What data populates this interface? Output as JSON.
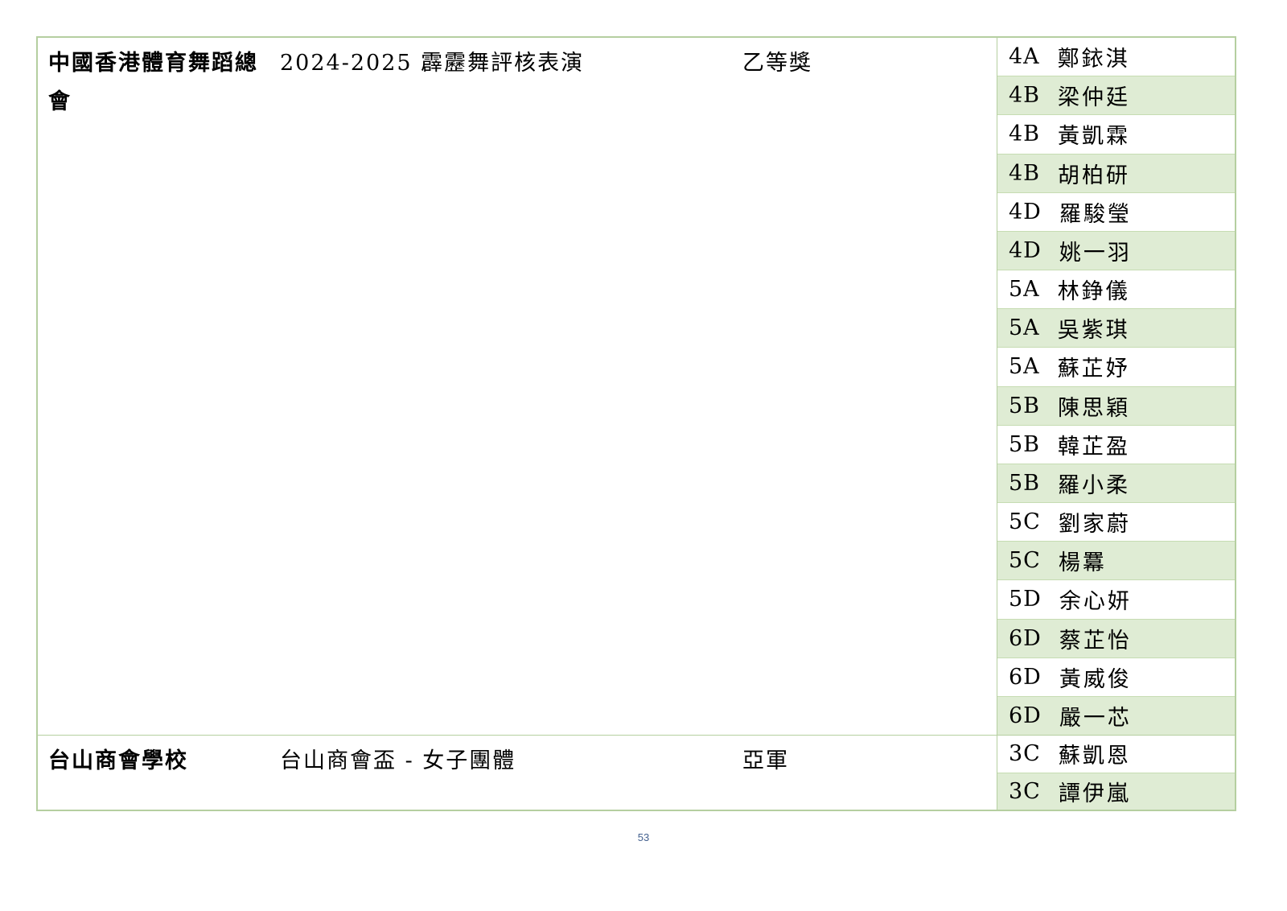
{
  "page": {
    "number": "53"
  },
  "colors": {
    "row_shade_green": "#dfecd4",
    "table_border_green": "#b5cfa0",
    "row_separator_green": "#c6dcb2",
    "page_number_blue": "#44618f"
  },
  "sections": [
    {
      "organization": "中國香港體育舞蹈總會",
      "event": "2024-2025 霹靂舞評核表演",
      "award": "乙等獎",
      "students": [
        {
          "class": "4A",
          "name": "鄭銥淇"
        },
        {
          "class": "4B",
          "name": "梁仲廷"
        },
        {
          "class": "4B",
          "name": "黃凱霖"
        },
        {
          "class": "4B",
          "name": "胡柏研"
        },
        {
          "class": "4D",
          "name": "羅駿瑩"
        },
        {
          "class": "4D",
          "name": "姚一羽"
        },
        {
          "class": "5A",
          "name": "林錚儀"
        },
        {
          "class": "5A",
          "name": "吳紫琪"
        },
        {
          "class": "5A",
          "name": "蘇芷妤"
        },
        {
          "class": "5B",
          "name": "陳思穎"
        },
        {
          "class": "5B",
          "name": "韓芷盈"
        },
        {
          "class": "5B",
          "name": "羅小柔"
        },
        {
          "class": "5C",
          "name": "劉家蔚"
        },
        {
          "class": "5C",
          "name": "楊羃"
        },
        {
          "class": "5D",
          "name": "余心妍"
        },
        {
          "class": "6D",
          "name": "蔡芷怡"
        },
        {
          "class": "6D",
          "name": "黃威俊"
        },
        {
          "class": "6D",
          "name": "嚴一芯"
        }
      ]
    },
    {
      "organization": "台山商會學校",
      "event": "台山商會盃 - 女子團體",
      "award": "亞軍",
      "students": [
        {
          "class": "3C",
          "name": "蘇凱恩"
        },
        {
          "class": "3C",
          "name": "譚伊嵐"
        }
      ]
    }
  ]
}
